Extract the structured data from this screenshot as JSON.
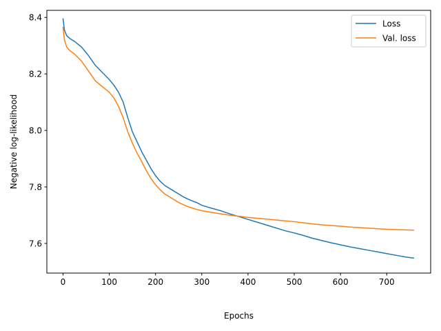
{
  "chart_data": {
    "type": "line",
    "xlabel": "Epochs",
    "ylabel": "Negative log-likelihood",
    "xlim": [
      -35,
      795
    ],
    "ylim": [
      7.495,
      8.425
    ],
    "xticks": [
      0,
      100,
      200,
      300,
      400,
      500,
      600,
      700
    ],
    "yticks": [
      7.6,
      7.8,
      8.0,
      8.2,
      8.4
    ],
    "xtick_labels": [
      "0",
      "100",
      "200",
      "300",
      "400",
      "500",
      "600",
      "700"
    ],
    "ytick_labels": [
      "7.6",
      "7.8",
      "8.0",
      "8.2",
      "8.4"
    ],
    "grid": false,
    "legend_position": "top-right",
    "series": [
      {
        "name": "Loss",
        "color": "#1f77b4",
        "x": [
          0,
          3,
          8,
          15,
          25,
          40,
          55,
          70,
          85,
          100,
          110,
          120,
          130,
          140,
          150,
          160,
          170,
          180,
          190,
          200,
          210,
          220,
          230,
          240,
          250,
          260,
          270,
          280,
          290,
          300,
          320,
          340,
          360,
          380,
          400,
          420,
          440,
          460,
          480,
          500,
          520,
          540,
          560,
          580,
          600,
          620,
          640,
          660,
          680,
          700,
          720,
          740,
          758
        ],
        "y": [
          8.395,
          8.355,
          8.335,
          8.325,
          8.315,
          8.295,
          8.265,
          8.23,
          8.205,
          8.18,
          8.16,
          8.135,
          8.1,
          8.045,
          7.995,
          7.96,
          7.925,
          7.895,
          7.865,
          7.84,
          7.82,
          7.805,
          7.795,
          7.785,
          7.775,
          7.765,
          7.757,
          7.75,
          7.744,
          7.735,
          7.725,
          7.716,
          7.705,
          7.695,
          7.685,
          7.675,
          7.665,
          7.655,
          7.645,
          7.637,
          7.628,
          7.618,
          7.61,
          7.602,
          7.595,
          7.588,
          7.582,
          7.576,
          7.57,
          7.564,
          7.558,
          7.552,
          7.548
        ]
      },
      {
        "name": "Val. loss",
        "color": "#ff7f0e",
        "x": [
          0,
          3,
          8,
          15,
          25,
          40,
          55,
          70,
          85,
          100,
          110,
          120,
          130,
          140,
          150,
          160,
          170,
          180,
          190,
          200,
          210,
          220,
          230,
          240,
          250,
          260,
          270,
          280,
          290,
          300,
          320,
          340,
          360,
          380,
          400,
          420,
          440,
          460,
          480,
          500,
          520,
          540,
          560,
          580,
          600,
          620,
          640,
          660,
          680,
          700,
          720,
          740,
          758
        ],
        "y": [
          8.365,
          8.32,
          8.295,
          8.282,
          8.27,
          8.245,
          8.21,
          8.175,
          8.155,
          8.135,
          8.115,
          8.085,
          8.045,
          7.995,
          7.955,
          7.92,
          7.89,
          7.858,
          7.83,
          7.808,
          7.79,
          7.775,
          7.765,
          7.755,
          7.745,
          7.737,
          7.73,
          7.725,
          7.72,
          7.716,
          7.71,
          7.705,
          7.7,
          7.696,
          7.692,
          7.689,
          7.686,
          7.683,
          7.68,
          7.677,
          7.673,
          7.669,
          7.666,
          7.663,
          7.661,
          7.658,
          7.656,
          7.654,
          7.652,
          7.65,
          7.649,
          7.648,
          7.647
        ]
      }
    ]
  }
}
